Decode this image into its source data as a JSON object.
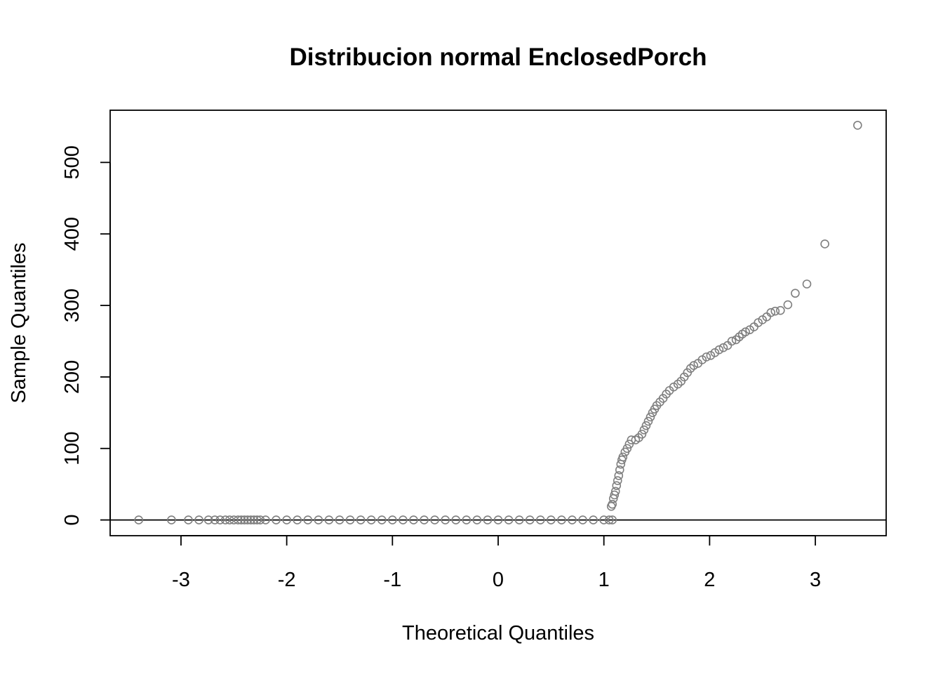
{
  "chart_data": {
    "type": "scatter",
    "title": "Distribucion normal EnclosedPorch",
    "xlabel": "Theoretical Quantiles",
    "ylabel": "Sample Quantiles",
    "xlim": [
      -3.67,
      3.67
    ],
    "ylim": [
      -22,
      573
    ],
    "x_ticks": [
      -3,
      -2,
      -1,
      0,
      1,
      2,
      3
    ],
    "y_ticks": [
      0,
      100,
      200,
      300,
      400,
      500
    ],
    "reference_line": {
      "y": 0
    },
    "grid": false,
    "legend": "none",
    "point_color": "#7f7f7f",
    "points": [
      [
        -3.4,
        0
      ],
      [
        -3.09,
        0
      ],
      [
        -2.93,
        0
      ],
      [
        -2.83,
        0
      ],
      [
        -2.74,
        0
      ],
      [
        -2.68,
        0
      ],
      [
        -2.63,
        0
      ],
      [
        -2.58,
        0
      ],
      [
        -2.54,
        0
      ],
      [
        -2.5,
        0
      ],
      [
        -2.46,
        0
      ],
      [
        -2.43,
        0
      ],
      [
        -2.4,
        0
      ],
      [
        -2.37,
        0
      ],
      [
        -2.34,
        0
      ],
      [
        -2.31,
        0
      ],
      [
        -2.28,
        0
      ],
      [
        -2.25,
        0
      ],
      [
        -2.2,
        0
      ],
      [
        -2.1,
        0
      ],
      [
        -2.0,
        0
      ],
      [
        -1.9,
        0
      ],
      [
        -1.8,
        0
      ],
      [
        -1.7,
        0
      ],
      [
        -1.6,
        0
      ],
      [
        -1.5,
        0
      ],
      [
        -1.4,
        0
      ],
      [
        -1.3,
        0
      ],
      [
        -1.2,
        0
      ],
      [
        -1.1,
        0
      ],
      [
        -1.0,
        0
      ],
      [
        -0.9,
        0
      ],
      [
        -0.8,
        0
      ],
      [
        -0.7,
        0
      ],
      [
        -0.6,
        0
      ],
      [
        -0.5,
        0
      ],
      [
        -0.4,
        0
      ],
      [
        -0.3,
        0
      ],
      [
        -0.2,
        0
      ],
      [
        -0.1,
        0
      ],
      [
        0.0,
        0
      ],
      [
        0.1,
        0
      ],
      [
        0.2,
        0
      ],
      [
        0.3,
        0
      ],
      [
        0.4,
        0
      ],
      [
        0.5,
        0
      ],
      [
        0.6,
        0
      ],
      [
        0.7,
        0
      ],
      [
        0.8,
        0
      ],
      [
        0.9,
        0
      ],
      [
        1.0,
        0
      ],
      [
        1.05,
        0
      ],
      [
        1.08,
        0
      ],
      [
        1.07,
        19
      ],
      [
        1.08,
        22
      ],
      [
        1.09,
        30
      ],
      [
        1.1,
        35
      ],
      [
        1.11,
        40
      ],
      [
        1.12,
        48
      ],
      [
        1.13,
        55
      ],
      [
        1.14,
        62
      ],
      [
        1.15,
        70
      ],
      [
        1.16,
        78
      ],
      [
        1.17,
        84
      ],
      [
        1.18,
        88
      ],
      [
        1.2,
        95
      ],
      [
        1.22,
        100
      ],
      [
        1.24,
        106
      ],
      [
        1.26,
        112
      ],
      [
        1.3,
        112
      ],
      [
        1.33,
        115
      ],
      [
        1.36,
        120
      ],
      [
        1.38,
        126
      ],
      [
        1.4,
        132
      ],
      [
        1.42,
        138
      ],
      [
        1.44,
        144
      ],
      [
        1.46,
        150
      ],
      [
        1.48,
        155
      ],
      [
        1.5,
        160
      ],
      [
        1.53,
        165
      ],
      [
        1.56,
        170
      ],
      [
        1.59,
        176
      ],
      [
        1.62,
        181
      ],
      [
        1.66,
        186
      ],
      [
        1.7,
        190
      ],
      [
        1.73,
        194
      ],
      [
        1.76,
        200
      ],
      [
        1.79,
        206
      ],
      [
        1.82,
        212
      ],
      [
        1.85,
        216
      ],
      [
        1.89,
        219
      ],
      [
        1.93,
        224
      ],
      [
        1.97,
        228
      ],
      [
        2.01,
        230
      ],
      [
        2.05,
        234
      ],
      [
        2.09,
        238
      ],
      [
        2.13,
        241
      ],
      [
        2.17,
        244
      ],
      [
        2.21,
        250
      ],
      [
        2.25,
        252
      ],
      [
        2.28,
        256
      ],
      [
        2.31,
        260
      ],
      [
        2.34,
        263
      ],
      [
        2.38,
        266
      ],
      [
        2.42,
        270
      ],
      [
        2.46,
        276
      ],
      [
        2.5,
        280
      ],
      [
        2.54,
        284
      ],
      [
        2.58,
        290
      ],
      [
        2.62,
        292
      ],
      [
        2.67,
        293
      ],
      [
        2.74,
        301
      ],
      [
        2.81,
        317
      ],
      [
        2.92,
        330
      ],
      [
        3.09,
        386
      ],
      [
        3.4,
        552
      ]
    ]
  }
}
